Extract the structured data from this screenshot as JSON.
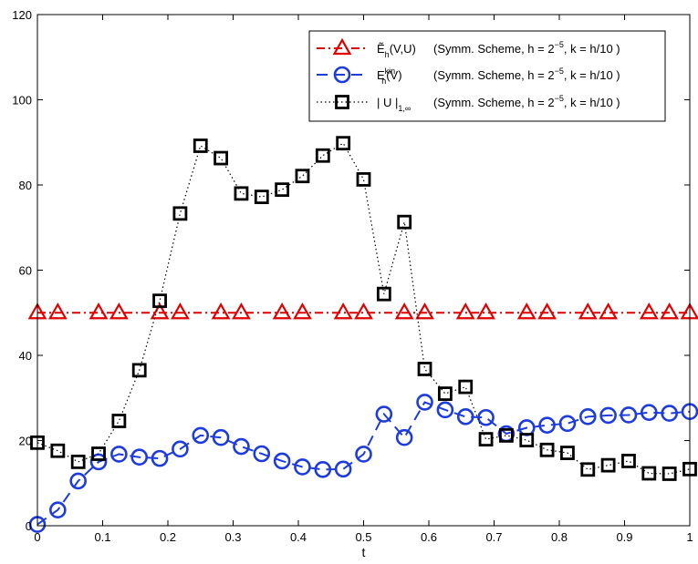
{
  "chart_data": {
    "type": "line",
    "xlabel": "t",
    "ylabel": "",
    "xlim": [
      0,
      1
    ],
    "ylim": [
      0,
      120
    ],
    "xticks": [
      0,
      0.1,
      0.2,
      0.3,
      0.4,
      0.5,
      0.6,
      0.7,
      0.8,
      0.9,
      1
    ],
    "xtick_labels": [
      "0",
      "0.1",
      "0.2",
      "0.3",
      "0.4",
      "0.5",
      "0.6",
      "0.7",
      "0.8",
      "0.9",
      "1"
    ],
    "yticks": [
      0,
      20,
      40,
      60,
      80,
      100,
      120
    ],
    "ytick_labels": [
      "0",
      "20",
      "40",
      "60",
      "80",
      "100",
      "120"
    ],
    "grid": false,
    "legend_position": "top-right",
    "series": [
      {
        "symbol": "Ẽ",
        "sub": "h",
        "sup": "",
        "arg": "(V,U)",
        "desc_pre": "(Symm. Scheme, h = 2",
        "desc_exp": "−5",
        "desc_post": ", k = h/10 )",
        "color": "#e00000",
        "marker": "triangle",
        "line": "dashdot",
        "x": [
          0,
          0.03125,
          0.0625,
          0.09375,
          0.125,
          0.15625,
          0.1875,
          0.21875,
          0.25,
          0.28125,
          0.3125,
          0.34375,
          0.375,
          0.40625,
          0.4375,
          0.46875,
          0.5,
          0.53125,
          0.5625,
          0.59375,
          0.625,
          0.65625,
          0.6875,
          0.71875,
          0.75,
          0.78125,
          0.8125,
          0.84375,
          0.875,
          0.90625,
          0.9375,
          0.96875,
          1
        ],
        "y": [
          50,
          50,
          50,
          50,
          50,
          50,
          50,
          50,
          50,
          50,
          50,
          50,
          50,
          50,
          50,
          50,
          50,
          50,
          50,
          50,
          50,
          50,
          50,
          50,
          50,
          50,
          50,
          50,
          50,
          50,
          50,
          50,
          50
        ],
        "marker_x": [
          0,
          0.03125,
          0.09375,
          0.125,
          0.1875,
          0.21875,
          0.28125,
          0.3125,
          0.375,
          0.40625,
          0.46875,
          0.5,
          0.5625,
          0.59375,
          0.65625,
          0.6875,
          0.75,
          0.78125,
          0.84375,
          0.875,
          0.9375,
          0.96875,
          1
        ],
        "marker_y": [
          50,
          50,
          50,
          50,
          50,
          50,
          50,
          50,
          50,
          50,
          50,
          50,
          50,
          50,
          50,
          50,
          50,
          50,
          50,
          50,
          50,
          50,
          50
        ]
      },
      {
        "symbol": "E",
        "sub": "h",
        "sup": "kin",
        "arg": "(V)",
        "desc_pre": "(Symm. Scheme, h = 2",
        "desc_exp": "−5",
        "desc_post": ", k = h/10 )",
        "color": "#1e3cdc",
        "marker": "circle",
        "line": "dashed",
        "x": [
          0,
          0.03125,
          0.0625,
          0.09375,
          0.125,
          0.15625,
          0.1875,
          0.21875,
          0.25,
          0.28125,
          0.3125,
          0.34375,
          0.375,
          0.40625,
          0.4375,
          0.46875,
          0.5,
          0.53125,
          0.5625,
          0.59375,
          0.625,
          0.65625,
          0.6875,
          0.71875,
          0.75,
          0.78125,
          0.8125,
          0.84375,
          0.875,
          0.90625,
          0.9375,
          0.96875,
          1
        ],
        "y": [
          0.3,
          3.7,
          10.5,
          15.0,
          16.8,
          16.1,
          15.8,
          18.0,
          21.2,
          20.7,
          18.6,
          16.9,
          15.2,
          13.8,
          13.2,
          13.3,
          16.8,
          26.2,
          20.7,
          29.0,
          27.2,
          25.6,
          25.4,
          21.6,
          23.0,
          23.6,
          24.0,
          25.6,
          25.9,
          26.0,
          26.6,
          26.4,
          26.8
        ]
      },
      {
        "symbol": "| U |",
        "sub": "1,∞",
        "sup": "",
        "arg": "",
        "desc_pre": "(Symm. Scheme, h = 2",
        "desc_exp": "−5",
        "desc_post": ", k = h/10 )",
        "color": "#000000",
        "marker": "square",
        "line": "dotted",
        "x": [
          0,
          0.03125,
          0.0625,
          0.09375,
          0.125,
          0.15625,
          0.1875,
          0.21875,
          0.25,
          0.28125,
          0.3125,
          0.34375,
          0.375,
          0.40625,
          0.4375,
          0.46875,
          0.5,
          0.53125,
          0.5625,
          0.59375,
          0.625,
          0.65625,
          0.6875,
          0.71875,
          0.75,
          0.78125,
          0.8125,
          0.84375,
          0.875,
          0.90625,
          0.9375,
          0.96875,
          1
        ],
        "y": [
          19.5,
          17.6,
          15.0,
          16.9,
          24.6,
          36.5,
          52.8,
          73.3,
          89.2,
          86.3,
          78.0,
          77.2,
          78.9,
          82.1,
          86.9,
          89.8,
          81.3,
          54.4,
          71.3,
          36.8,
          31.0,
          32.6,
          20.3,
          21.2,
          20.1,
          17.8,
          17.1,
          13.2,
          14.2,
          15.2,
          12.3,
          12.2,
          13.3
        ]
      }
    ]
  }
}
